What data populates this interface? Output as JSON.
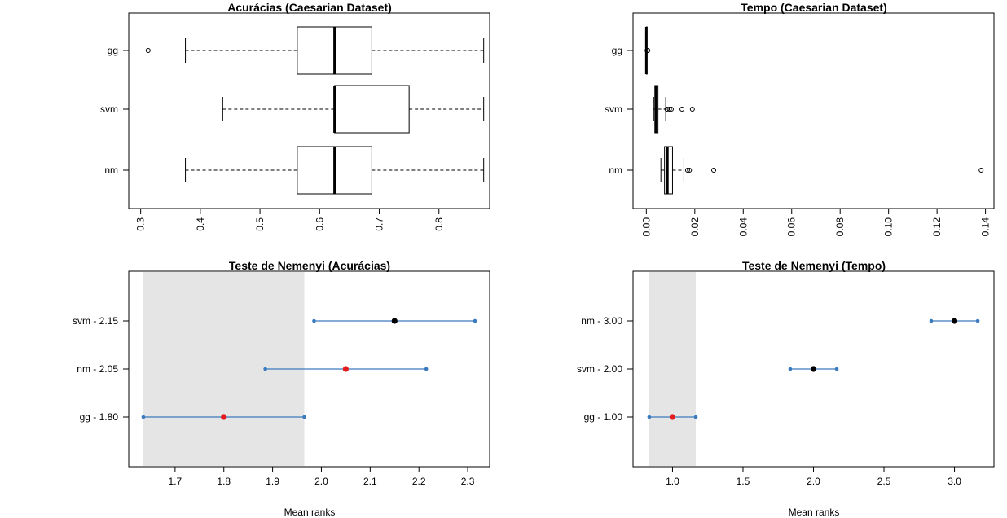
{
  "chart_data": [
    {
      "type": "boxplot",
      "orientation": "horizontal",
      "title": "Acurácias (Caesarian Dataset)",
      "categories": [
        "gg",
        "svm",
        "nm"
      ],
      "xlim": [
        0.28,
        0.885
      ],
      "ticks": [
        0.3,
        0.4,
        0.5,
        0.6,
        0.7,
        0.8
      ],
      "tick_labels": [
        "0.3",
        "0.4",
        "0.5",
        "0.6",
        "0.7",
        "0.8"
      ],
      "series": [
        {
          "name": "gg",
          "whisker_low": 0.375,
          "q1": 0.5625,
          "median": 0.625,
          "q3": 0.6875,
          "whisker_high": 0.875,
          "outliers": [
            0.3125
          ]
        },
        {
          "name": "svm",
          "whisker_low": 0.4375,
          "q1": 0.625,
          "median": 0.625,
          "q3": 0.75,
          "whisker_high": 0.875,
          "outliers": []
        },
        {
          "name": "nm",
          "whisker_low": 0.375,
          "q1": 0.5625,
          "median": 0.625,
          "q3": 0.6875,
          "whisker_high": 0.875,
          "outliers": []
        }
      ]
    },
    {
      "type": "boxplot",
      "orientation": "horizontal",
      "title": "Tempo (Caesarian Dataset)",
      "categories": [
        "gg",
        "svm",
        "nm"
      ],
      "xlim": [
        -0.0055,
        0.1435
      ],
      "ticks": [
        0.0,
        0.02,
        0.04,
        0.06,
        0.08,
        0.1,
        0.12,
        0.14
      ],
      "tick_labels": [
        "0.00",
        "0.02",
        "0.04",
        "0.06",
        "0.08",
        "0.10",
        "0.12",
        "0.14"
      ],
      "series": [
        {
          "name": "gg",
          "whisker_low": 0.0,
          "q1": 0.0,
          "median": 0.0,
          "q3": 0.0,
          "whisker_high": 0.0,
          "outliers": [
            0.0003,
            0.0006
          ]
        },
        {
          "name": "svm",
          "whisker_low": 0.003,
          "q1": 0.0035,
          "median": 0.004,
          "q3": 0.0048,
          "whisker_high": 0.008,
          "outliers": [
            0.0085,
            0.0095,
            0.0103,
            0.0147,
            0.019
          ]
        },
        {
          "name": "nm",
          "whisker_low": 0.006,
          "q1": 0.0075,
          "median": 0.0087,
          "q3": 0.0108,
          "whisker_high": 0.0155,
          "outliers": [
            0.017,
            0.0178,
            0.0278,
            0.1382
          ]
        }
      ]
    },
    {
      "type": "scatter",
      "title": "Teste de Nemenyi (Acurácias)",
      "xlabel": "Mean ranks",
      "xlim": [
        1.605,
        2.345
      ],
      "ticks": [
        1.7,
        1.8,
        1.9,
        2.0,
        2.1,
        2.2,
        2.3
      ],
      "tick_labels": [
        "1.7",
        "1.8",
        "1.9",
        "2.0",
        "2.1",
        "2.2",
        "2.3"
      ],
      "critical_band": [
        1.635,
        1.965
      ],
      "series": [
        {
          "label": "gg - 1.80",
          "mean": 1.8,
          "low": 1.635,
          "high": 1.965,
          "color": "#e41a1c"
        },
        {
          "label": "nm - 2.05",
          "mean": 2.05,
          "low": 1.885,
          "high": 2.215,
          "color": "#e41a1c"
        },
        {
          "label": "svm - 2.15",
          "mean": 2.15,
          "low": 1.985,
          "high": 2.315,
          "color": "#000000"
        }
      ]
    },
    {
      "type": "scatter",
      "title": "Teste de Nemenyi (Tempo)",
      "xlabel": "Mean ranks",
      "xlim": [
        0.72,
        3.28
      ],
      "ticks": [
        1.0,
        1.5,
        2.0,
        2.5,
        3.0
      ],
      "tick_labels": [
        "1.0",
        "1.5",
        "2.0",
        "2.5",
        "3.0"
      ],
      "critical_band": [
        0.835,
        1.165
      ],
      "series": [
        {
          "label": "gg - 1.00",
          "mean": 1.0,
          "low": 0.835,
          "high": 1.165,
          "color": "#e41a1c"
        },
        {
          "label": "svm - 2.00",
          "mean": 2.0,
          "low": 1.835,
          "high": 2.165,
          "color": "#000000"
        },
        {
          "label": "nm - 3.00",
          "mean": 3.0,
          "low": 2.835,
          "high": 3.165,
          "color": "#000000"
        }
      ]
    }
  ],
  "colors": {
    "interval": "#3a7bbf",
    "band": "#e5e5e5",
    "axis": "#000000"
  }
}
